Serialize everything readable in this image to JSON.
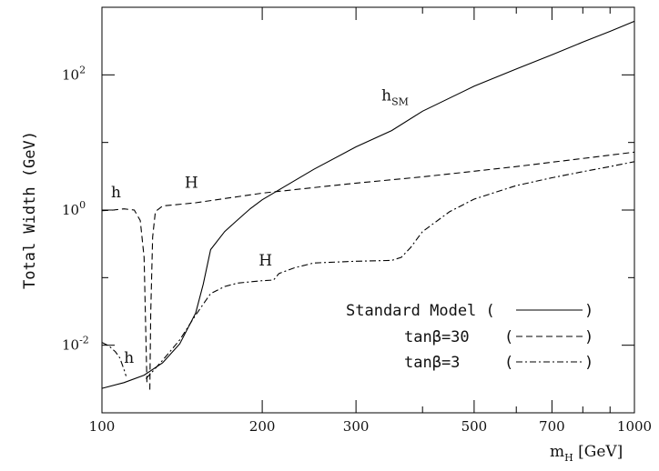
{
  "chart_data": {
    "type": "line",
    "xlabel": "m_H [GeV]",
    "ylabel": "Total Width (GeV)",
    "x_scale": "log",
    "y_scale": "log",
    "xlim": [
      100,
      1000
    ],
    "ylim": [
      0.001,
      1000
    ],
    "x_ticks": [
      {
        "value": 100,
        "label": "100"
      },
      {
        "value": 200,
        "label": "200"
      },
      {
        "value": 300,
        "label": "300"
      },
      {
        "value": 500,
        "label": "500"
      },
      {
        "value": 700,
        "label": "700"
      },
      {
        "value": 1000,
        "label": "1000"
      }
    ],
    "y_ticks": [
      {
        "value": 0.01,
        "base": "10",
        "exp": "-2"
      },
      {
        "value": 1,
        "base": "10",
        "exp": "0"
      },
      {
        "value": 100,
        "base": "10",
        "exp": "2"
      }
    ],
    "series": [
      {
        "name": "Standard Model",
        "style": "solid",
        "segments": [
          [
            [
              100,
              0.0023
            ],
            [
              110,
              0.0028
            ],
            [
              120,
              0.0036
            ],
            [
              130,
              0.0055
            ],
            [
              140,
              0.0105
            ],
            [
              150,
              0.03
            ],
            [
              155,
              0.08
            ],
            [
              160,
              0.26
            ],
            [
              170,
              0.48
            ],
            [
              180,
              0.72
            ],
            [
              190,
              1.05
            ],
            [
              200,
              1.42
            ],
            [
              250,
              4.0
            ],
            [
              300,
              8.6
            ],
            [
              350,
              15.0
            ],
            [
              400,
              29.0
            ],
            [
              500,
              68.0
            ],
            [
              600,
              122.0
            ],
            [
              700,
              198.0
            ],
            [
              800,
              305.0
            ],
            [
              900,
              440.0
            ],
            [
              1000,
              620.0
            ]
          ]
        ]
      },
      {
        "name": "tanβ=30",
        "style": "dashed",
        "segments": [
          [
            [
              100,
              0.98
            ],
            [
              105,
              1.0
            ],
            [
              110,
              1.04
            ],
            [
              115,
              1.0
            ],
            [
              118,
              0.7
            ],
            [
              120,
              0.2
            ],
            [
              121.5,
              0.0025
            ]
          ],
          [
            [
              123,
              0.0022
            ],
            [
              123.5,
              0.03
            ],
            [
              124.5,
              0.4
            ],
            [
              126,
              0.95
            ],
            [
              130,
              1.15
            ],
            [
              150,
              1.28
            ],
            [
              200,
              1.78
            ],
            [
              250,
              2.15
            ],
            [
              300,
              2.5
            ],
            [
              400,
              3.1
            ],
            [
              500,
              3.75
            ],
            [
              600,
              4.4
            ],
            [
              700,
              5.1
            ],
            [
              800,
              5.8
            ],
            [
              900,
              6.5
            ],
            [
              1000,
              7.2
            ]
          ]
        ]
      },
      {
        "name": "tanβ=3",
        "style": "dashdot",
        "segments": [
          [
            [
              100,
              0.011
            ],
            [
              103,
              0.0098
            ],
            [
              106,
              0.008
            ],
            [
              108,
              0.0065
            ],
            [
              110,
              0.0044
            ],
            [
              111,
              0.0035
            ]
          ],
          [
            [
              121,
              0.0032
            ],
            [
              130,
              0.006
            ],
            [
              140,
              0.012
            ],
            [
              150,
              0.028
            ],
            [
              160,
              0.058
            ],
            [
              170,
              0.074
            ],
            [
              180,
              0.083
            ],
            [
              200,
              0.09
            ],
            [
              210,
              0.092
            ],
            [
              215,
              0.115
            ],
            [
              230,
              0.14
            ],
            [
              250,
              0.165
            ],
            [
              300,
              0.175
            ],
            [
              350,
              0.18
            ],
            [
              365,
              0.2
            ],
            [
              380,
              0.28
            ],
            [
              400,
              0.48
            ],
            [
              450,
              0.95
            ],
            [
              500,
              1.45
            ],
            [
              600,
              2.3
            ],
            [
              700,
              3.0
            ],
            [
              800,
              3.7
            ],
            [
              900,
              4.4
            ],
            [
              1000,
              5.2
            ]
          ]
        ]
      }
    ],
    "annotations": [
      {
        "id": "hsm",
        "text": "h",
        "sub": "SM",
        "x": 335,
        "y": 42
      },
      {
        "id": "h-tb30",
        "text": "h",
        "x": 104,
        "y": 1.55
      },
      {
        "id": "H-tb30",
        "text": "H",
        "x": 143,
        "y": 2.15
      },
      {
        "id": "H-tb3",
        "text": "H",
        "x": 197,
        "y": 0.15
      },
      {
        "id": "h-tb3",
        "text": "h",
        "x": 110,
        "y": 0.0055
      }
    ],
    "legend": {
      "position": "bottom-right",
      "entries": [
        {
          "label": "Standard Model (",
          "close": ")",
          "style": "solid"
        },
        {
          "label": "tanβ=30",
          "open": "(",
          "close": ")",
          "style": "dashed"
        },
        {
          "label": "tanβ=3",
          "open": "(",
          "close": ")",
          "style": "dashdot"
        }
      ]
    }
  }
}
